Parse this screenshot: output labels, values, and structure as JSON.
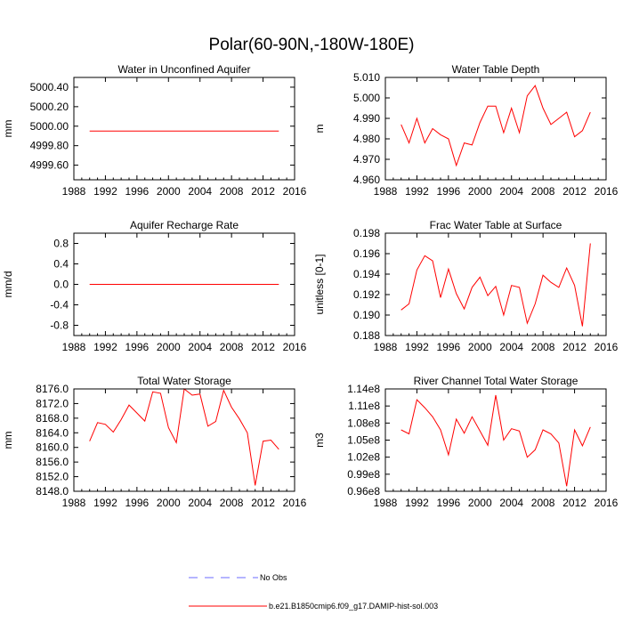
{
  "figure": {
    "title": "Polar(60-90N,-180W-180E)",
    "legend": [
      {
        "label": "No Obs",
        "color": "#6b6bff",
        "dash": true
      },
      {
        "label": "b.e21.B1850cmip6.f09_g17.DAMIP-hist-sol.003",
        "color": "#ff0000",
        "dash": false
      }
    ]
  },
  "chart_data": [
    {
      "type": "line",
      "title": "Water in Unconfined Aquifer",
      "ylabel": "mm",
      "xlim": [
        1988,
        2016
      ],
      "ylim": [
        4999.45,
        5000.5
      ],
      "xticks": [
        1988,
        1992,
        1996,
        2000,
        2004,
        2008,
        2012,
        2016
      ],
      "yticks": [
        4999.6,
        4999.8,
        5000.0,
        5000.2,
        5000.4
      ],
      "ytick_labels": [
        "4999.60",
        "4999.80",
        "5000.00",
        "5000.20",
        "5000.40"
      ],
      "series": [
        {
          "color": "#ff0000",
          "x": [
            1990,
            1991,
            1992,
            1993,
            1994,
            1995,
            1996,
            1997,
            1998,
            1999,
            2000,
            2001,
            2002,
            2003,
            2004,
            2005,
            2006,
            2007,
            2008,
            2009,
            2010,
            2011,
            2012,
            2013,
            2014
          ],
          "y": [
            4999.95,
            4999.95,
            4999.95,
            4999.95,
            4999.95,
            4999.95,
            4999.95,
            4999.95,
            4999.95,
            4999.95,
            4999.95,
            4999.95,
            4999.95,
            4999.95,
            4999.95,
            4999.95,
            4999.95,
            4999.95,
            4999.95,
            4999.95,
            4999.95,
            4999.95,
            4999.95,
            4999.95,
            4999.95
          ]
        }
      ]
    },
    {
      "type": "line",
      "title": "Water Table Depth",
      "ylabel": "m",
      "xlim": [
        1988,
        2016
      ],
      "ylim": [
        4.96,
        5.01
      ],
      "xticks": [
        1988,
        1992,
        1996,
        2000,
        2004,
        2008,
        2012,
        2016
      ],
      "yticks": [
        4.96,
        4.97,
        4.98,
        4.99,
        5.0,
        5.01
      ],
      "ytick_labels": [
        "4.960",
        "4.970",
        "4.980",
        "4.990",
        "5.000",
        "5.010"
      ],
      "series": [
        {
          "color": "#ff0000",
          "x": [
            1990,
            1991,
            1992,
            1993,
            1994,
            1995,
            1996,
            1997,
            1998,
            1999,
            2000,
            2001,
            2002,
            2003,
            2004,
            2005,
            2006,
            2007,
            2008,
            2009,
            2010,
            2011,
            2012,
            2013,
            2014
          ],
          "y": [
            4.987,
            4.978,
            4.99,
            4.978,
            4.985,
            4.982,
            4.98,
            4.967,
            4.978,
            4.977,
            4.988,
            4.996,
            4.996,
            4.983,
            4.995,
            4.983,
            5.001,
            5.006,
            4.995,
            4.987,
            4.99,
            4.993,
            4.981,
            4.984,
            4.993
          ]
        }
      ]
    },
    {
      "type": "line",
      "title": "Aquifer Recharge Rate",
      "ylabel": "mm/d",
      "xlim": [
        1988,
        2016
      ],
      "ylim": [
        -1.0,
        1.0
      ],
      "xticks": [
        1988,
        1992,
        1996,
        2000,
        2004,
        2008,
        2012,
        2016
      ],
      "yticks": [
        -0.8,
        -0.4,
        0.0,
        0.4,
        0.8
      ],
      "ytick_labels": [
        "-0.8",
        "-0.4",
        "0.0",
        "0.4",
        "0.8"
      ],
      "series": [
        {
          "color": "#ff0000",
          "x": [
            1990,
            1991,
            1992,
            1993,
            1994,
            1995,
            1996,
            1997,
            1998,
            1999,
            2000,
            2001,
            2002,
            2003,
            2004,
            2005,
            2006,
            2007,
            2008,
            2009,
            2010,
            2011,
            2012,
            2013,
            2014
          ],
          "y": [
            0,
            0,
            0,
            0,
            0,
            0,
            0,
            0,
            0,
            0,
            0,
            0,
            0,
            0,
            0,
            0,
            0,
            0,
            0,
            0,
            0,
            0,
            0,
            0,
            0
          ]
        }
      ]
    },
    {
      "type": "line",
      "title": "Frac Water Table at Surface",
      "ylabel": "unitless [0-1]",
      "xlim": [
        1988,
        2016
      ],
      "ylim": [
        0.188,
        0.198
      ],
      "xticks": [
        1988,
        1992,
        1996,
        2000,
        2004,
        2008,
        2012,
        2016
      ],
      "yticks": [
        0.188,
        0.19,
        0.192,
        0.194,
        0.196,
        0.198
      ],
      "ytick_labels": [
        "0.188",
        "0.190",
        "0.192",
        "0.194",
        "0.196",
        "0.198"
      ],
      "series": [
        {
          "color": "#ff0000",
          "x": [
            1990,
            1991,
            1992,
            1993,
            1994,
            1995,
            1996,
            1997,
            1998,
            1999,
            2000,
            2001,
            2002,
            2003,
            2004,
            2005,
            2006,
            2007,
            2008,
            2009,
            2010,
            2011,
            2012,
            2013,
            2014
          ],
          "y": [
            0.1905,
            0.1911,
            0.1944,
            0.1958,
            0.1953,
            0.1917,
            0.1945,
            0.1921,
            0.1906,
            0.1927,
            0.1937,
            0.1919,
            0.1928,
            0.19,
            0.1929,
            0.1927,
            0.1892,
            0.1911,
            0.1939,
            0.1932,
            0.1927,
            0.1946,
            0.1929,
            0.1889,
            0.197
          ]
        }
      ]
    },
    {
      "type": "line",
      "title": "Total Water Storage",
      "ylabel": "mm",
      "xlim": [
        1988,
        2016
      ],
      "ylim": [
        8148.0,
        8176.0
      ],
      "xticks": [
        1988,
        1992,
        1996,
        2000,
        2004,
        2008,
        2012,
        2016
      ],
      "yticks": [
        8148,
        8152,
        8156,
        8160,
        8164,
        8168,
        8172,
        8176
      ],
      "ytick_labels": [
        "8148.0",
        "8152.0",
        "8156.0",
        "8160.0",
        "8164.0",
        "8168.0",
        "8172.0",
        "8176.0"
      ],
      "series": [
        {
          "color": "#ff0000",
          "x": [
            1990,
            1991,
            1992,
            1993,
            1994,
            1995,
            1996,
            1997,
            1998,
            1999,
            2000,
            2001,
            2002,
            2003,
            2004,
            2005,
            2006,
            2007,
            2008,
            2009,
            2010,
            2011,
            2012,
            2013,
            2014
          ],
          "y": [
            8161.7,
            8166.8,
            8166.3,
            8164.2,
            8167.6,
            8171.6,
            8169.4,
            8167.2,
            8175.2,
            8174.8,
            8165.4,
            8161.3,
            8176.0,
            8174.3,
            8174.6,
            8165.8,
            8167.1,
            8175.6,
            8171.0,
            8167.8,
            8164.0,
            8149.6,
            8161.7,
            8162.0,
            8159.5
          ]
        }
      ]
    },
    {
      "type": "line",
      "title": "River Channel Total Water Storage",
      "ylabel": "m3",
      "xlim": [
        1988,
        2016
      ],
      "ylim": [
        0.96,
        1.14
      ],
      "xticks": [
        1988,
        1992,
        1996,
        2000,
        2004,
        2008,
        2012,
        2016
      ],
      "yticks": [
        0.96,
        0.99,
        1.02,
        1.05,
        1.08,
        1.11,
        1.14
      ],
      "ytick_labels": [
        "0.96e8",
        "0.99e8",
        "1.02e8",
        "1.05e8",
        "1.08e8",
        "1.11e8",
        "1.14e8"
      ],
      "series": [
        {
          "color": "#ff0000",
          "x": [
            1990,
            1991,
            1992,
            1993,
            1994,
            1995,
            1996,
            1997,
            1998,
            1999,
            2000,
            2001,
            2002,
            2003,
            2004,
            2005,
            2006,
            2007,
            2008,
            2009,
            2010,
            2011,
            2012,
            2013,
            2014
          ],
          "y": [
            1.068,
            1.061,
            1.121,
            1.107,
            1.091,
            1.068,
            1.024,
            1.087,
            1.062,
            1.091,
            1.066,
            1.041,
            1.129,
            1.05,
            1.07,
            1.066,
            1.02,
            1.033,
            1.068,
            1.061,
            1.045,
            0.969,
            1.068,
            1.04,
            1.073
          ]
        }
      ]
    }
  ]
}
